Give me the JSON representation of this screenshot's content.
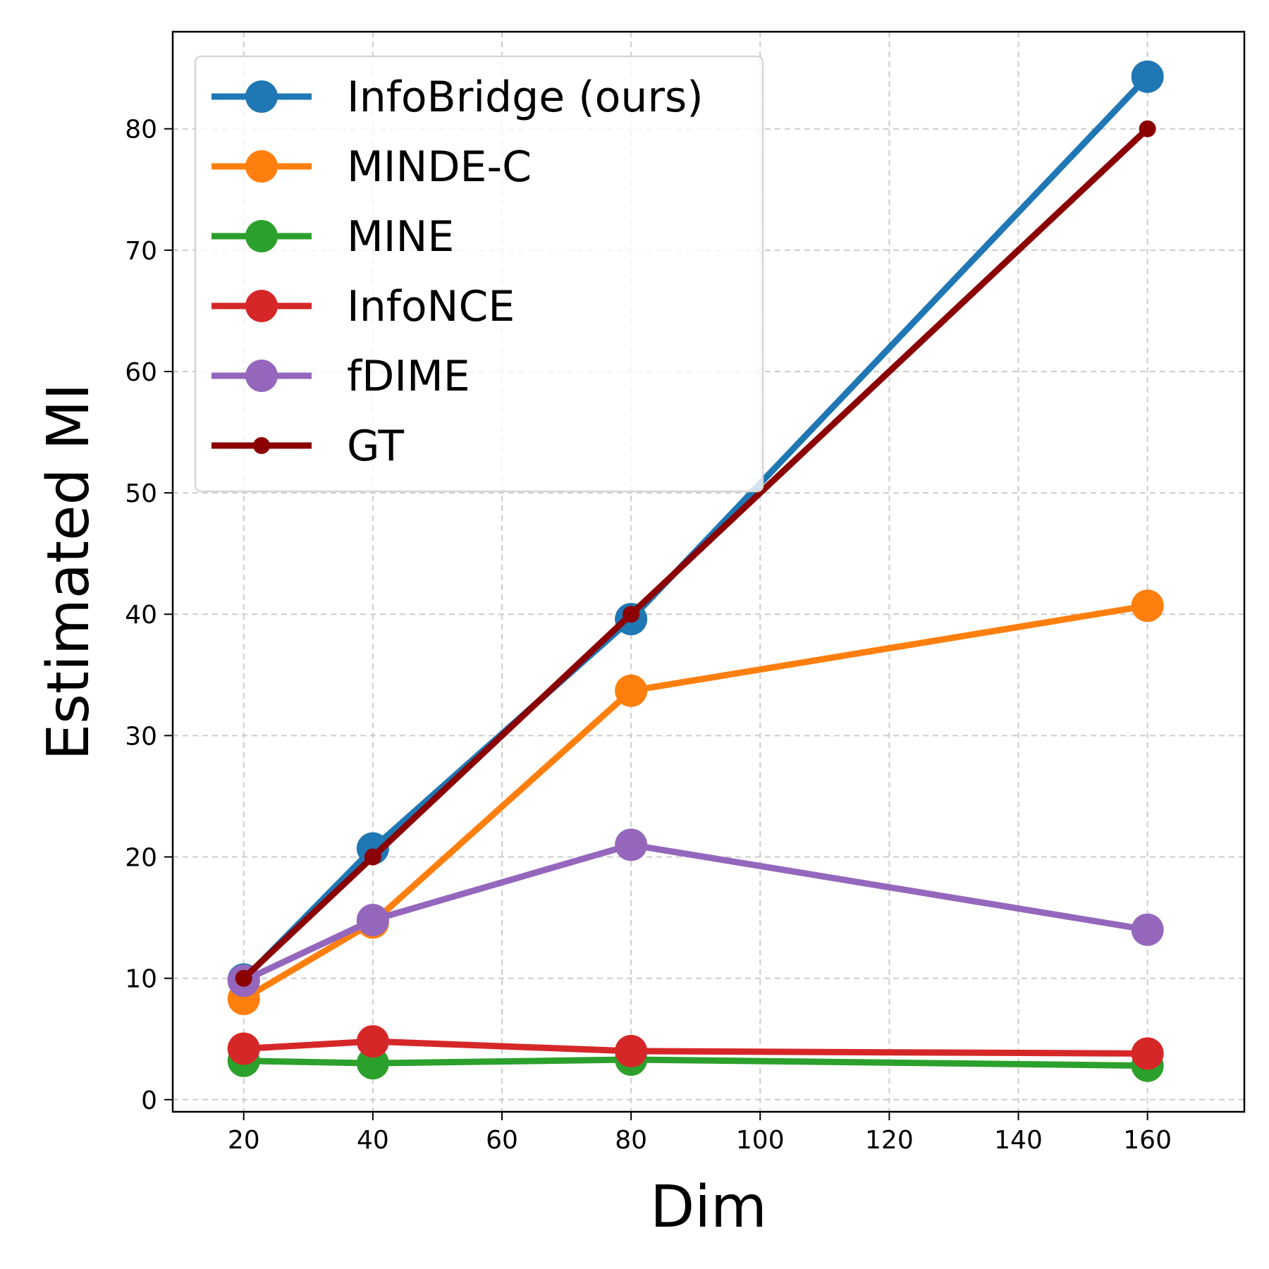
{
  "chart_data": {
    "type": "line",
    "title": "",
    "xlabel": "Dim",
    "ylabel": "Estimated MI",
    "xlim": [
      9,
      175
    ],
    "ylim": [
      -1,
      88
    ],
    "x_ticks": [
      20,
      40,
      60,
      80,
      100,
      120,
      140,
      160
    ],
    "y_ticks": [
      0,
      10,
      20,
      30,
      40,
      50,
      60,
      70,
      80
    ],
    "grid": true,
    "legend_position": "top-left",
    "x": [
      20,
      40,
      80,
      160
    ],
    "series": [
      {
        "name": "InfoBridge (ours)",
        "color": "#1f77b4",
        "marker": "large",
        "values": [
          9.9,
          20.7,
          39.6,
          84.3
        ]
      },
      {
        "name": "MINDE-C",
        "color": "#ff7f0e",
        "marker": "large",
        "values": [
          8.3,
          14.6,
          33.7,
          40.7
        ]
      },
      {
        "name": "MINE",
        "color": "#2ca02c",
        "marker": "large",
        "values": [
          3.2,
          3.0,
          3.3,
          2.8
        ]
      },
      {
        "name": "InfoNCE",
        "color": "#d62728",
        "marker": "large",
        "values": [
          4.2,
          4.8,
          4.0,
          3.8
        ]
      },
      {
        "name": "fDIME",
        "color": "#9467bd",
        "marker": "large",
        "values": [
          9.8,
          14.8,
          21.0,
          14.0
        ]
      },
      {
        "name": "GT",
        "color": "#8b0000",
        "marker": "small",
        "values": [
          10,
          20,
          40,
          80
        ]
      }
    ]
  }
}
